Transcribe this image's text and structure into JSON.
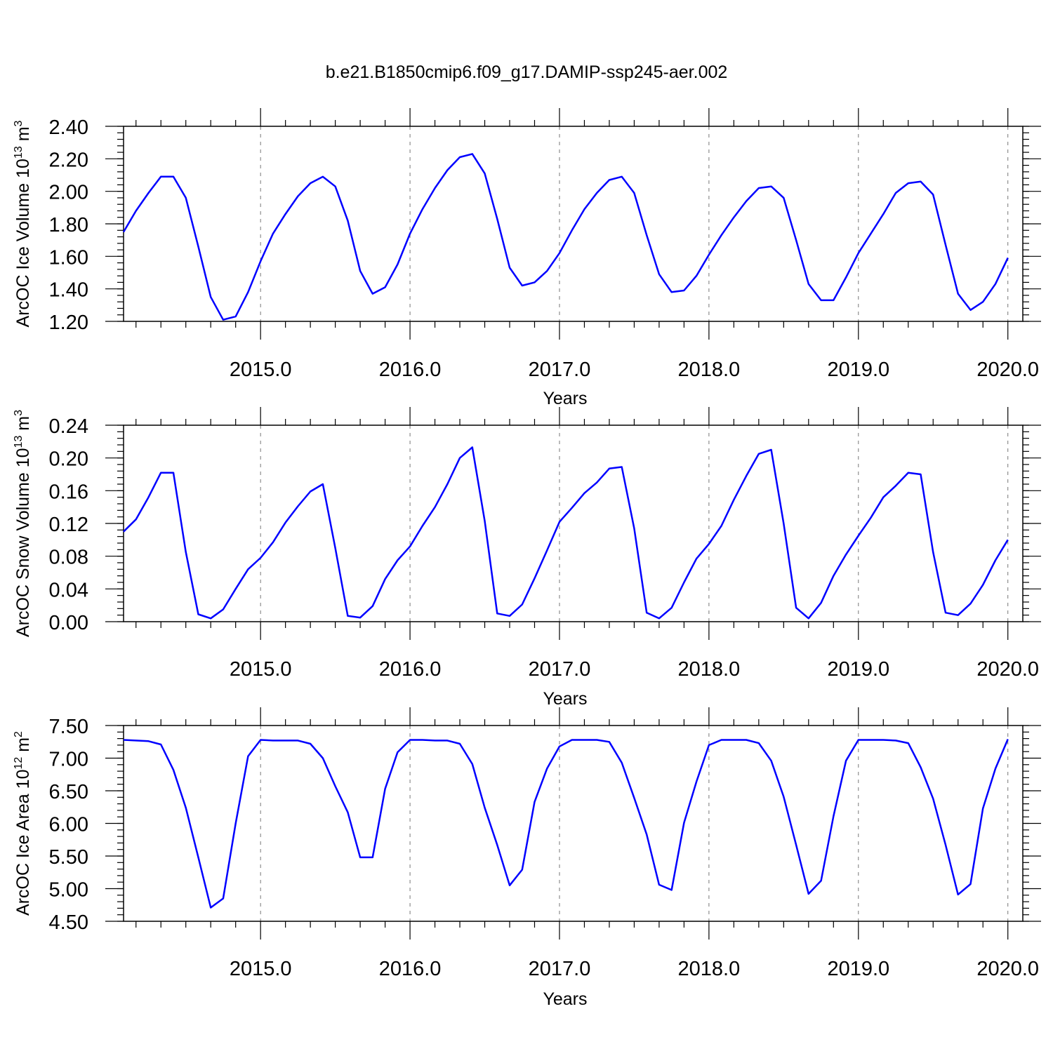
{
  "title": "b.e21.B1850cmip6.f09_g17.DAMIP-ssp245-aer.002",
  "colors": {
    "line": "#0000ff",
    "axis": "#000000",
    "grid": "#777777"
  },
  "chart_data": [
    {
      "type": "line",
      "ylabel": "ArcOC Ice Volume 10",
      "ylabel_exp": "13",
      "ylabel_unit": "m",
      "ylabel_unit_exp": "3",
      "xlabel": "Years",
      "xlim": [
        2014.0833,
        2020.1
      ],
      "ylim": [
        1.2,
        2.4
      ],
      "yticks": [
        1.2,
        1.4,
        1.6,
        1.8,
        2.0,
        2.2,
        2.4
      ],
      "ytick_labels": [
        "1.20",
        "1.40",
        "1.60",
        "1.80",
        "2.00",
        "2.20",
        "2.40"
      ],
      "xticks": [
        2015.0,
        2016.0,
        2017.0,
        2018.0,
        2019.0,
        2020.0
      ],
      "xtick_labels": [
        "2015.0",
        "2016.0",
        "2017.0",
        "2018.0",
        "2019.0",
        "2020.0"
      ],
      "grid": "dashed vertical at major x ticks",
      "series": [
        {
          "values": [
            1.75,
            1.88,
            1.99,
            2.09,
            2.09,
            1.96,
            1.66,
            1.35,
            1.21,
            1.23,
            1.38,
            1.57,
            1.74,
            1.86,
            1.97,
            2.05,
            2.09,
            2.03,
            1.82,
            1.51,
            1.37,
            1.41,
            1.55,
            1.74,
            1.89,
            2.02,
            2.13,
            2.21,
            2.23,
            2.11,
            1.83,
            1.53,
            1.42,
            1.44,
            1.51,
            1.62,
            1.76,
            1.89,
            1.99,
            2.07,
            2.09,
            1.99,
            1.73,
            1.49,
            1.38,
            1.39,
            1.48,
            1.61,
            1.73,
            1.84,
            1.94,
            2.02,
            2.03,
            1.96,
            1.7,
            1.43,
            1.33,
            1.33,
            1.47,
            1.62,
            1.74,
            1.86,
            1.99,
            2.05,
            2.06,
            1.98,
            1.67,
            1.37,
            1.27,
            1.32,
            1.43,
            1.59
          ]
        }
      ]
    },
    {
      "type": "line",
      "ylabel": "ArcOC Snow Volume 10",
      "ylabel_exp": "13",
      "ylabel_unit": "m",
      "ylabel_unit_exp": "3",
      "xlabel": "Years",
      "xlim": [
        2014.0833,
        2020.1
      ],
      "ylim": [
        0.0,
        0.24
      ],
      "yticks": [
        0.0,
        0.04,
        0.08,
        0.12,
        0.16,
        0.2,
        0.24
      ],
      "ytick_labels": [
        "0.00",
        "0.04",
        "0.08",
        "0.12",
        "0.16",
        "0.20",
        "0.24"
      ],
      "xticks": [
        2015.0,
        2016.0,
        2017.0,
        2018.0,
        2019.0,
        2020.0
      ],
      "xtick_labels": [
        "2015.0",
        "2016.0",
        "2017.0",
        "2018.0",
        "2019.0",
        "2020.0"
      ],
      "grid": "dashed vertical at major x ticks",
      "series": [
        {
          "values": [
            0.11,
            0.125,
            0.152,
            0.182,
            0.182,
            0.085,
            0.009,
            0.004,
            0.015,
            0.04,
            0.064,
            0.078,
            0.097,
            0.121,
            0.141,
            0.159,
            0.168,
            0.09,
            0.007,
            0.005,
            0.019,
            0.052,
            0.075,
            0.092,
            0.117,
            0.14,
            0.168,
            0.2,
            0.213,
            0.123,
            0.01,
            0.007,
            0.021,
            0.053,
            0.087,
            0.122,
            0.139,
            0.157,
            0.17,
            0.187,
            0.189,
            0.114,
            0.011,
            0.004,
            0.017,
            0.048,
            0.077,
            0.095,
            0.117,
            0.149,
            0.178,
            0.205,
            0.21,
            0.12,
            0.017,
            0.004,
            0.023,
            0.056,
            0.082,
            0.105,
            0.127,
            0.152,
            0.166,
            0.182,
            0.18,
            0.085,
            0.011,
            0.008,
            0.022,
            0.045,
            0.075,
            0.1
          ]
        }
      ]
    },
    {
      "type": "line",
      "ylabel": "ArcOC Ice Area 10",
      "ylabel_exp": "12",
      "ylabel_unit": "m",
      "ylabel_unit_exp": "2",
      "xlabel": "Years",
      "xlim": [
        2014.0833,
        2020.1
      ],
      "ylim": [
        4.5,
        7.5
      ],
      "yticks": [
        4.5,
        5.0,
        5.5,
        6.0,
        6.5,
        7.0,
        7.5
      ],
      "ytick_labels": [
        "4.50",
        "5.00",
        "5.50",
        "6.00",
        "6.50",
        "7.00",
        "7.50"
      ],
      "xticks": [
        2015.0,
        2016.0,
        2017.0,
        2018.0,
        2019.0,
        2020.0
      ],
      "xtick_labels": [
        "2015.0",
        "2016.0",
        "2017.0",
        "2018.0",
        "2019.0",
        "2020.0"
      ],
      "grid": "dashed vertical at major x ticks",
      "series": [
        {
          "values": [
            7.28,
            7.27,
            7.26,
            7.21,
            6.82,
            6.24,
            5.48,
            4.71,
            4.85,
            6.0,
            7.03,
            7.28,
            7.27,
            7.27,
            7.27,
            7.22,
            7.0,
            6.57,
            6.17,
            5.48,
            5.48,
            6.53,
            7.09,
            7.28,
            7.28,
            7.27,
            7.27,
            7.22,
            6.91,
            6.24,
            5.67,
            5.05,
            5.29,
            6.33,
            6.84,
            7.18,
            7.28,
            7.28,
            7.28,
            7.25,
            6.93,
            6.39,
            5.83,
            5.06,
            4.98,
            6.01,
            6.64,
            7.2,
            7.28,
            7.28,
            7.28,
            7.23,
            6.96,
            6.41,
            5.67,
            4.92,
            5.12,
            6.11,
            6.96,
            7.28,
            7.28,
            7.28,
            7.27,
            7.23,
            6.86,
            6.38,
            5.67,
            4.91,
            5.07,
            6.23,
            6.84,
            7.29
          ]
        }
      ]
    }
  ]
}
